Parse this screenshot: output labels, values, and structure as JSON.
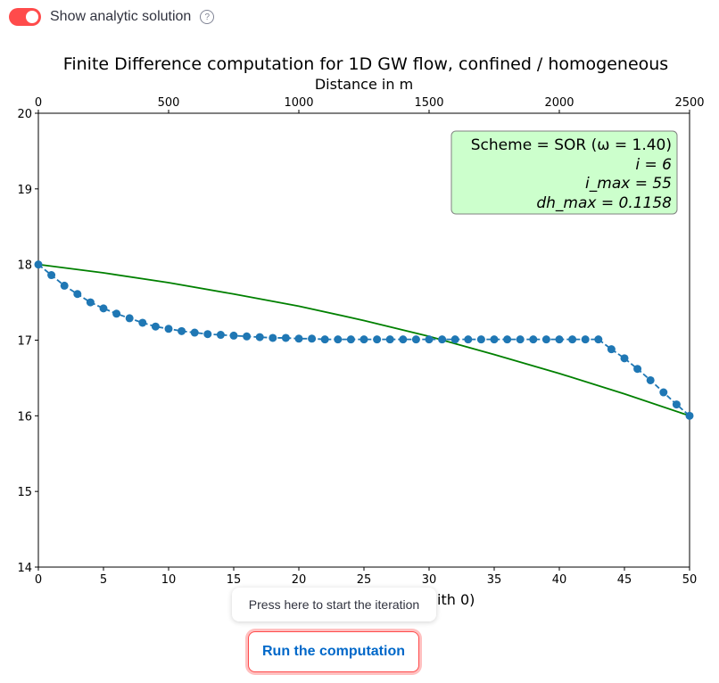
{
  "toggle": {
    "label": "Show analytic solution",
    "checked": true,
    "help_icon": "question-circle-icon",
    "color": "#ff4b4b"
  },
  "tooltip": {
    "text": "Press here to start the iteration"
  },
  "run_button": {
    "label": "Run the computation"
  },
  "chart_data": {
    "type": "line",
    "title": "Finite Difference computation for 1D GW flow, confined / homogeneous",
    "top_xlabel": "Distance in m",
    "xlabel_visible": "ith 0)",
    "xlim": [
      0,
      50
    ],
    "ylim": [
      14,
      20
    ],
    "top_xlim": [
      0,
      2500
    ],
    "xticks": [
      0,
      5,
      10,
      15,
      20,
      25,
      30,
      35,
      40,
      45,
      50
    ],
    "yticks": [
      14,
      15,
      16,
      17,
      18,
      19,
      20
    ],
    "top_xticks": [
      0,
      500,
      1000,
      1500,
      2000,
      2500
    ],
    "grid": false,
    "annotation": {
      "lines": [
        "Scheme = SOR (ω = 1.40)",
        "i = 6",
        "i_max = 55",
        "dh_max = 0.1158"
      ],
      "background": "#ccffcc"
    },
    "series": [
      {
        "style": "dashed-markers",
        "color": "#1f77b4",
        "x": [
          0,
          1,
          2,
          3,
          4,
          5,
          6,
          7,
          8,
          9,
          10,
          11,
          12,
          13,
          14,
          15,
          16,
          17,
          18,
          19,
          20,
          21,
          22,
          23,
          24,
          25,
          26,
          27,
          28,
          29,
          30,
          31,
          32,
          33,
          34,
          35,
          36,
          37,
          38,
          39,
          40,
          41,
          42,
          43,
          44,
          45,
          46,
          47,
          48,
          49,
          50
        ],
        "y": [
          18.0,
          17.86,
          17.72,
          17.61,
          17.5,
          17.42,
          17.35,
          17.29,
          17.23,
          17.18,
          17.15,
          17.12,
          17.1,
          17.08,
          17.07,
          17.06,
          17.05,
          17.04,
          17.03,
          17.03,
          17.02,
          17.02,
          17.01,
          17.01,
          17.01,
          17.01,
          17.01,
          17.01,
          17.01,
          17.01,
          17.01,
          17.01,
          17.01,
          17.01,
          17.01,
          17.01,
          17.01,
          17.01,
          17.01,
          17.01,
          17.01,
          17.01,
          17.01,
          17.01,
          16.88,
          16.76,
          16.62,
          16.47,
          16.31,
          16.15,
          16.0
        ]
      },
      {
        "style": "solid",
        "color": "#008000",
        "x": [
          0,
          5,
          10,
          15,
          20,
          25,
          30,
          35,
          40,
          45,
          50
        ],
        "y": [
          18.0,
          17.89,
          17.76,
          17.61,
          17.45,
          17.26,
          17.05,
          16.81,
          16.56,
          16.29,
          16.0
        ]
      }
    ]
  }
}
